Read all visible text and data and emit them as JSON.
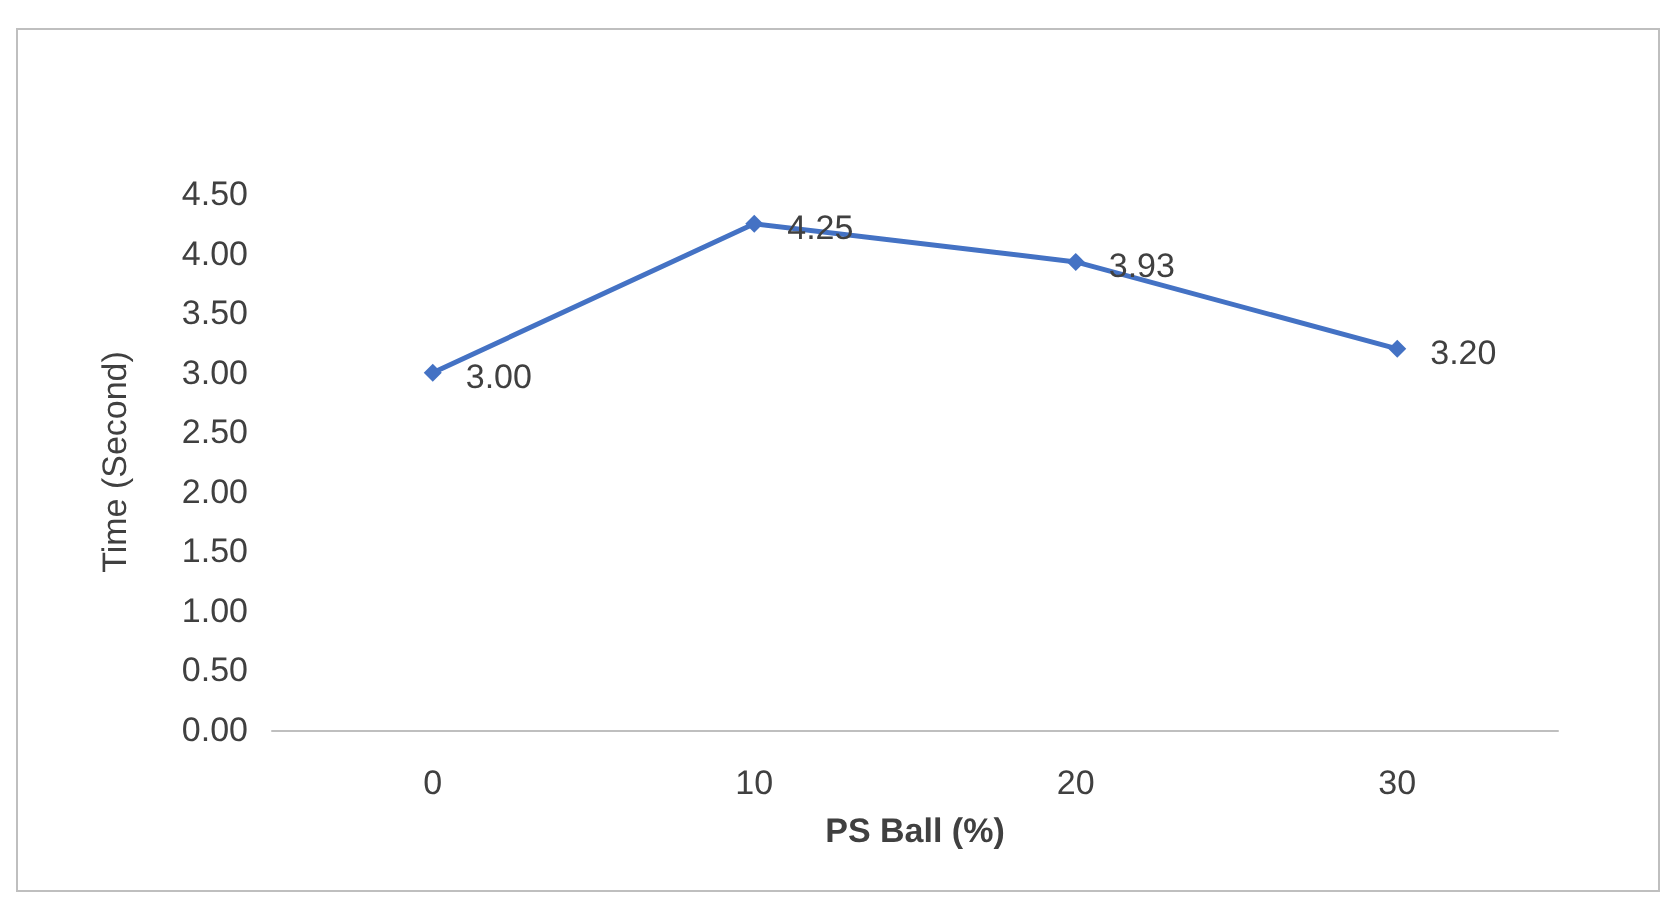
{
  "chart_data": {
    "type": "line",
    "xlabel": "PS Ball (%)",
    "ylabel": "Time (Second)",
    "categories": [
      "0",
      "10",
      "20",
      "30"
    ],
    "series": [
      {
        "color": "#4472c4",
        "values": [
          3.0,
          4.25,
          3.93,
          3.2
        ],
        "value_labels": [
          "3.00",
          "4.25",
          "3.93",
          "3.20"
        ]
      }
    ],
    "ylim": [
      0,
      4.5
    ],
    "yticks": [
      {
        "value": 0,
        "label": "0.00"
      },
      {
        "value": 0.5,
        "label": "0.50"
      },
      {
        "value": 1,
        "label": "1.00"
      },
      {
        "value": 1.5,
        "label": "1.50"
      },
      {
        "value": 2,
        "label": "2.00"
      },
      {
        "value": 2.5,
        "label": "2.50"
      },
      {
        "value": 3,
        "label": "3.00"
      },
      {
        "value": 3.5,
        "label": "3.50"
      },
      {
        "value": 4,
        "label": "4.00"
      },
      {
        "value": 4.5,
        "label": "4.50"
      }
    ],
    "grid": false,
    "marker": "diamond",
    "line_style": "solid"
  }
}
